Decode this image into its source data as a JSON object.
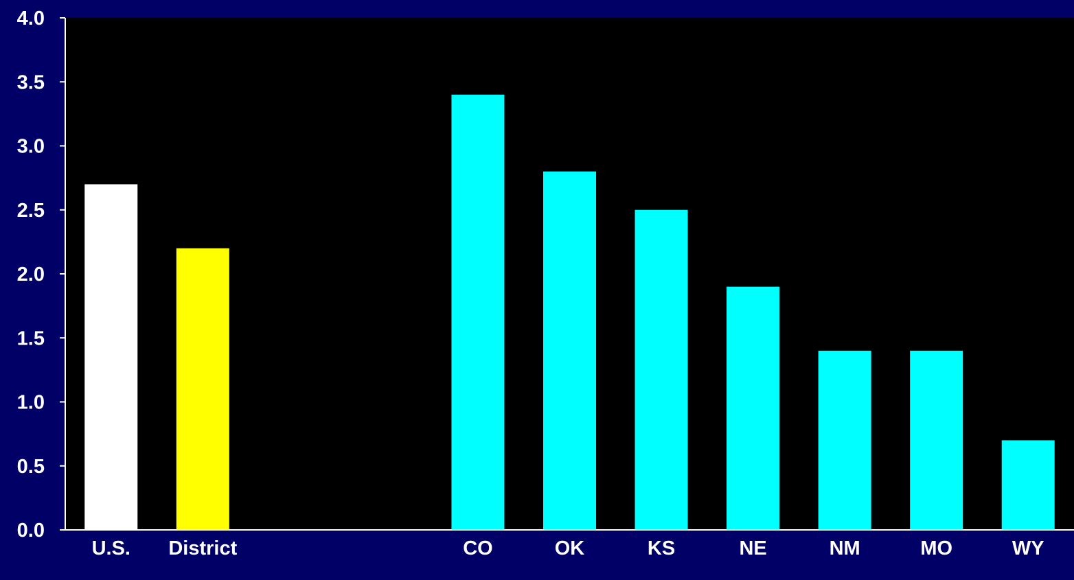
{
  "colors": {
    "background": "#000066",
    "plot_area": "#000000",
    "axis": "#ffffff",
    "text": "#ffffff"
  },
  "chart_data": {
    "type": "bar",
    "categories": [
      "U.S.",
      "District",
      "",
      "",
      "CO",
      "OK",
      "KS",
      "NE",
      "NM",
      "MO",
      "WY"
    ],
    "values": [
      2.7,
      2.2,
      null,
      null,
      3.4,
      2.8,
      2.5,
      1.9,
      1.4,
      1.4,
      0.7
    ],
    "bar_colors": [
      "#ffffff",
      "#ffff00",
      null,
      null,
      "#00ffff",
      "#00ffff",
      "#00ffff",
      "#00ffff",
      "#00ffff",
      "#00ffff",
      "#00ffff"
    ],
    "yticks": [
      "0.0",
      "0.5",
      "1.0",
      "1.5",
      "2.0",
      "2.5",
      "3.0",
      "3.5",
      "4.0"
    ],
    "ylim": [
      0,
      4
    ],
    "title": "",
    "xlabel": "",
    "ylabel": "",
    "grid": false,
    "legend": false
  }
}
